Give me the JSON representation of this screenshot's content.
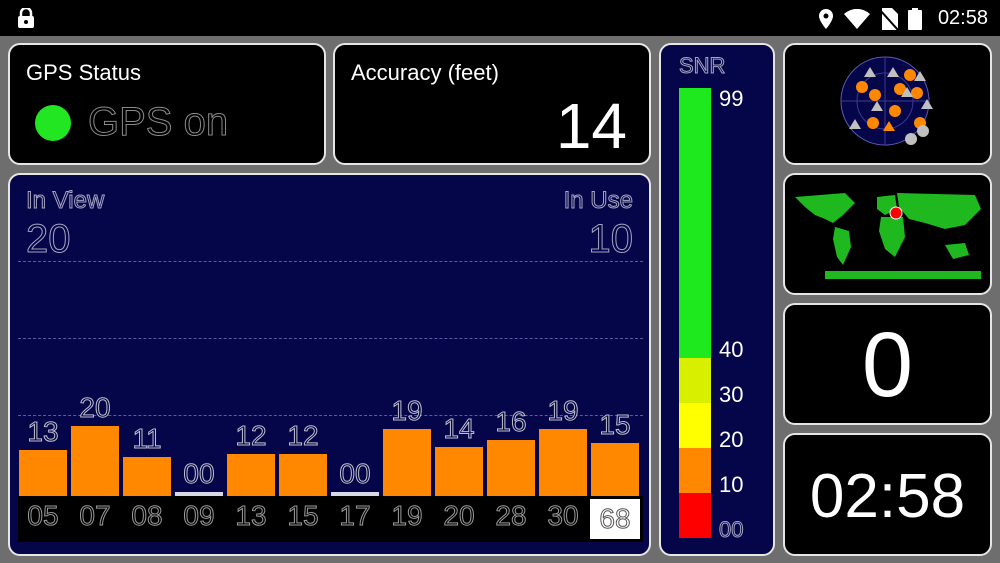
{
  "status_bar": {
    "time": "02:58",
    "icons": [
      "lock-icon",
      "location-icon",
      "wifi-icon",
      "no-sim-icon",
      "battery-icon"
    ]
  },
  "gps_status": {
    "title": "GPS Status",
    "state": "GPS on",
    "indicator_color": "#22e622"
  },
  "accuracy": {
    "title": "Accuracy (feet)",
    "value": "14"
  },
  "satellites": {
    "in_view_label": "In View",
    "in_view": "20",
    "in_use_label": "In Use",
    "in_use": "10",
    "bars": [
      {
        "prn": "05",
        "snr": "13",
        "value": 13
      },
      {
        "prn": "07",
        "snr": "20",
        "value": 20
      },
      {
        "prn": "08",
        "snr": "11",
        "value": 11
      },
      {
        "prn": "09",
        "snr": "00",
        "value": 0
      },
      {
        "prn": "13",
        "snr": "12",
        "value": 12
      },
      {
        "prn": "15",
        "snr": "12",
        "value": 12
      },
      {
        "prn": "17",
        "snr": "00",
        "value": 0
      },
      {
        "prn": "19",
        "snr": "19",
        "value": 19
      },
      {
        "prn": "20",
        "snr": "14",
        "value": 14
      },
      {
        "prn": "28",
        "snr": "16",
        "value": 16
      },
      {
        "prn": "30",
        "snr": "19",
        "value": 19
      },
      {
        "prn": "68",
        "snr": "15",
        "value": 15,
        "selected": true
      }
    ],
    "bar_color": "#ff8800"
  },
  "snr_scale": {
    "title": "SNR",
    "labels": [
      "99",
      "40",
      "30",
      "20",
      "10",
      "00"
    ],
    "colors": {
      "green": "#1ee81e",
      "yellow_green": "#d8f000",
      "yellow": "#ffff00",
      "orange": "#ff8800",
      "red": "#ff0000"
    }
  },
  "fix_count": "0",
  "fix_time": "02:58"
}
